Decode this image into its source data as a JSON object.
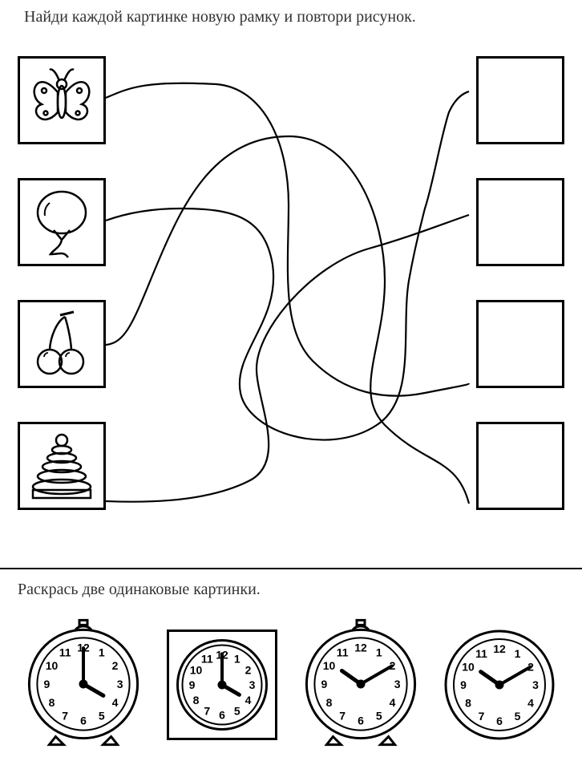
{
  "task1": {
    "instruction": "Найди каждой картинке новую рамку и повтори рисунок.",
    "left_items": [
      {
        "name": "butterfly"
      },
      {
        "name": "balloon"
      },
      {
        "name": "cherries"
      },
      {
        "name": "pyramid-toy"
      }
    ],
    "right_frames": 4,
    "maze_paths": [
      "M 2 52  C 30 40, 50 30, 140 35  C 200 40, 230 110, 230 185  C 230 260, 220 340, 260 380  C 300 420, 350 430, 400 420  C 440 412, 455 410, 455 408",
      "M 2 205 C 30 195, 60 190, 95 190 C 160 190, 200 200, 210 260 C 220 330, 160 370, 170 420 C 180 470, 280 500, 340 460 C 390 428, 370 340, 380 280 C 388 235, 395 210, 400 190 C 410 160, 420 100, 430 70 C 440 48, 452 45, 455 44",
      "M 2 360 C 30 358, 40 320, 70 250 C 100 180, 140 100, 230 100 C 310 100, 350 200, 350 280 C 350 360, 310 420, 350 460 C 400 510, 440 500, 455 558",
      "M 2 555 C 30 556, 120 560, 180 530 C 230 506, 190 430, 190 390 C 190 340, 260 260, 330 240 C 380 226, 420 210, 455 198"
    ],
    "stroke_color": "#000000",
    "stroke_width": 2.2
  },
  "task2": {
    "instruction": "Раскрась две одинаковые картинки.",
    "clocks": [
      {
        "shape": "alarm",
        "size": 160,
        "hour": 4,
        "minute": 0,
        "feet": true
      },
      {
        "shape": "square",
        "size": 150,
        "hour": 4,
        "minute": 0,
        "feet": false
      },
      {
        "shape": "alarm",
        "size": 160,
        "hour": 10,
        "minute": 10,
        "feet": true
      },
      {
        "shape": "round",
        "size": 150,
        "hour": 10,
        "minute": 10,
        "feet": false
      }
    ],
    "numeral_fontsize": 14,
    "stroke": "#000000"
  },
  "colors": {
    "stroke": "#000000",
    "bg": "#ffffff"
  }
}
